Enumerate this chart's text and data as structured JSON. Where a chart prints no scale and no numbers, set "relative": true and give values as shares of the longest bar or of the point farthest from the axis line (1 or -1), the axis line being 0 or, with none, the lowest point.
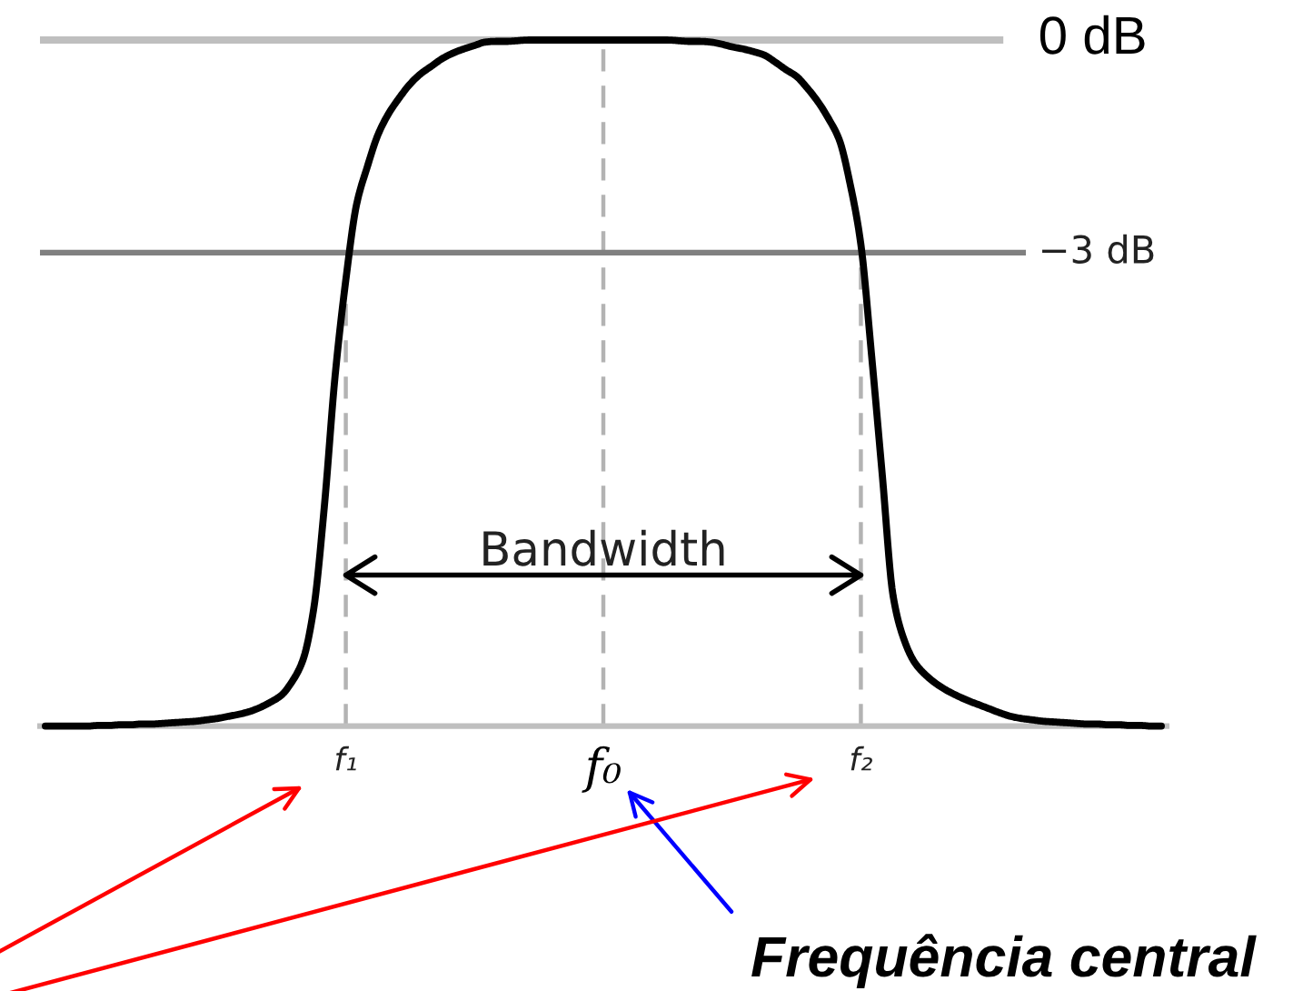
{
  "chart_data": {
    "type": "line",
    "relative": true,
    "categories": [
      null,
      null,
      null,
      null,
      null,
      null,
      null,
      null,
      null,
      null,
      null,
      null,
      null,
      null,
      null,
      null,
      null,
      null,
      null,
      null,
      null,
      null,
      null,
      null,
      null,
      null,
      null,
      null,
      "f₁",
      null,
      null,
      null,
      null,
      null,
      null,
      null,
      null,
      null,
      null,
      null,
      null,
      null,
      null,
      null,
      null,
      null,
      null,
      null,
      null,
      null,
      null,
      null,
      "f₀",
      null,
      null,
      null,
      null,
      null,
      null,
      null,
      null,
      null,
      null,
      null,
      null,
      null,
      null,
      null,
      null,
      null,
      null,
      null,
      null,
      null,
      null,
      null,
      "f₂",
      null,
      null,
      null,
      null,
      null,
      null,
      null,
      null,
      null,
      null,
      null,
      null,
      null,
      null,
      null,
      null,
      null,
      null,
      null,
      null,
      null,
      null,
      null,
      null,
      null,
      null,
      null,
      null
    ],
    "series": [
      {
        "color": "#000000",
        "values": [
          0,
          0,
          0,
          0,
          0,
          0.001,
          0.001,
          0.002,
          0.002,
          0.003,
          0.003,
          0.004,
          0.005,
          0.006,
          0.007,
          0.009,
          0.011,
          0.014,
          0.017,
          0.021,
          0.027,
          0.035,
          0.045,
          0.065,
          0.096,
          0.17,
          0.32,
          0.51,
          0.65,
          0.76,
          0.815,
          0.862,
          0.893,
          0.916,
          0.936,
          0.951,
          0.962,
          0.973,
          0.981,
          0.987,
          0.992,
          0.997,
          0.998,
          0.998,
          0.999,
          1,
          1,
          1,
          1,
          1,
          1,
          1,
          1,
          1,
          1,
          1,
          1,
          1,
          1,
          0.999,
          0.998,
          0.998,
          0.997,
          0.994,
          0.99,
          0.987,
          0.983,
          0.978,
          0.968,
          0.957,
          0.947,
          0.93,
          0.91,
          0.885,
          0.854,
          0.79,
          0.702,
          0.54,
          0.365,
          0.19,
          0.127,
          0.093,
          0.075,
          0.062,
          0.052,
          0.044,
          0.037,
          0.031,
          0.025,
          0.019,
          0.014,
          0.011,
          0.009,
          0.007,
          0.006,
          0.005,
          0.004,
          0.003,
          0.003,
          0.002,
          0.002,
          0.001,
          0.001,
          0,
          0
        ]
      },
      {
        "name": "Bandwidth",
        "color": "#000000",
        "x": [
          "f₁",
          "f₂"
        ],
        "values": [
          0.22,
          0.22
        ]
      }
    ],
    "ref_lines": [
      {
        "axis": "y",
        "value": 1,
        "label": "0 dB",
        "color": "#bfbfbf"
      },
      {
        "axis": "y",
        "value": 0.69,
        "label": "−3 dB",
        "color": "#808080"
      },
      {
        "axis": "x",
        "value": "f₁",
        "color": "#b3b3b3",
        "line_style": "dashed"
      },
      {
        "axis": "x",
        "value": "f₀",
        "color": "#b3b3b3",
        "line_style": "dashed"
      },
      {
        "axis": "x",
        "value": "f₂",
        "color": "#b3b3b3",
        "line_style": "dashed"
      }
    ],
    "annotations": [
      "Frequência central"
    ]
  }
}
